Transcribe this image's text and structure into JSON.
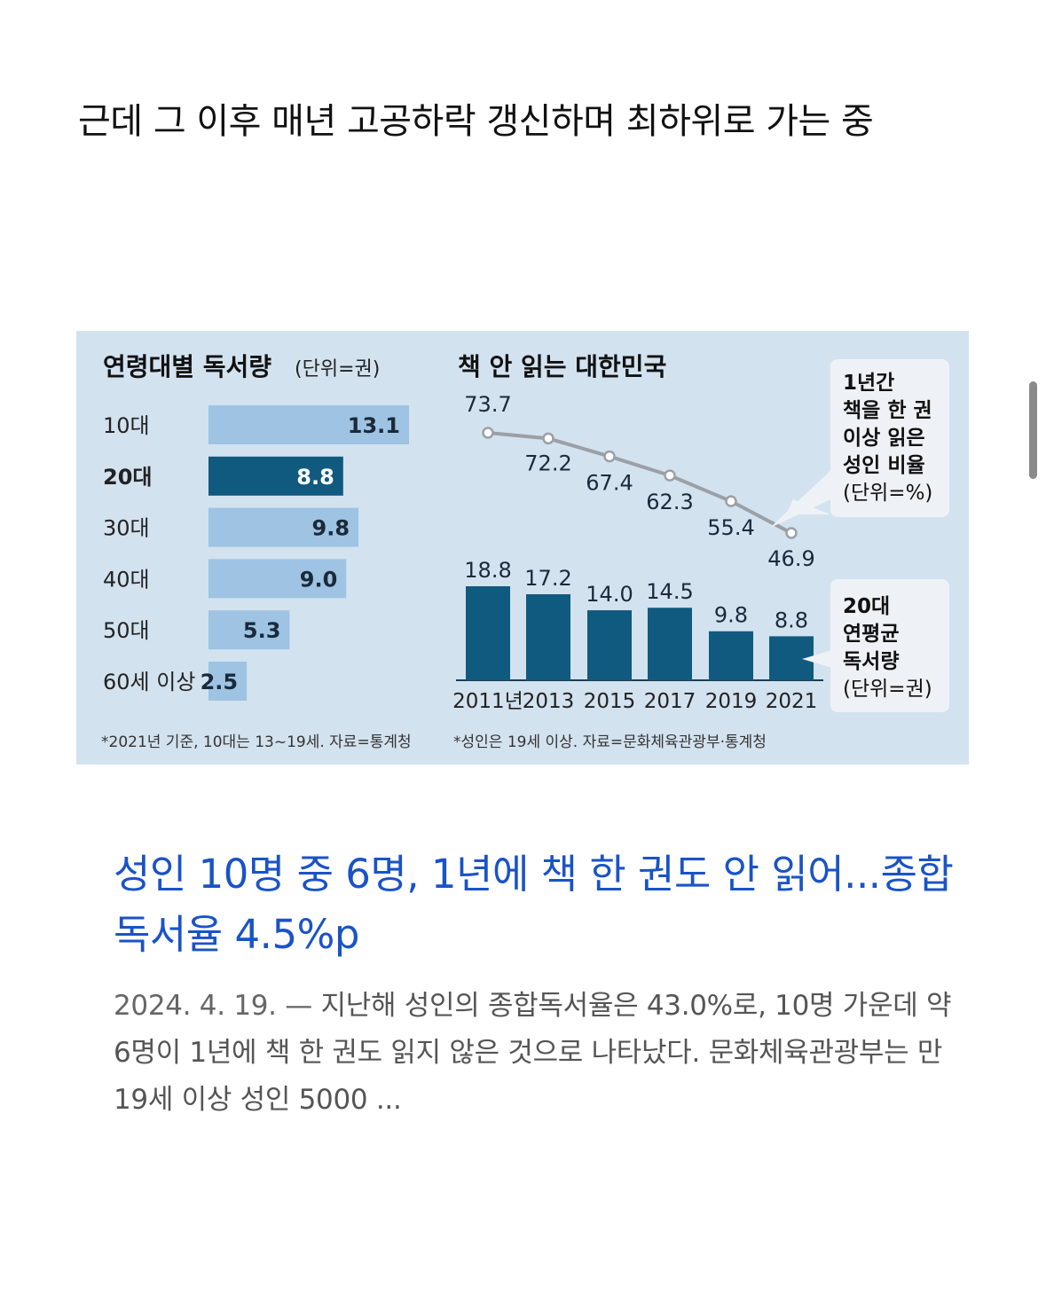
{
  "post": {
    "title": "근데 그 이후 매년 고공하락 갱신하며 최하위로 가는 중"
  },
  "article": {
    "headline": "성인 10명 중 6명, 1년에 책 한 권도 안 읽어...종합독서율 4.5%p",
    "date": "2024. 4. 19. —",
    "snippet": "지난해 성인의 종합독서율은 43.0%로, 10명 가운데 약 6명이 1년에 책 한 권도 읽지 않은 것으로 나타났다. 문화체육관광부는 만 19세 이상 성인 5000 ..."
  },
  "colors": {
    "panel_bg": "#d3e2ef",
    "light_bar": "#9ec3e3",
    "dark_bar": "#115a7f",
    "line": "#9aa0a6",
    "link": "#1a53c7"
  },
  "chart_data": [
    {
      "type": "bar",
      "orientation": "horizontal",
      "title": "연령대별 독서량",
      "unit_label": "(단위=권)",
      "categories": [
        "10대",
        "20대",
        "30대",
        "40대",
        "50대",
        "60세 이상"
      ],
      "values": [
        13.1,
        8.8,
        9.8,
        9.0,
        5.3,
        2.5
      ],
      "value_labels": [
        "13.1",
        "8.8",
        "9.8",
        "9.0",
        "5.3",
        "2.5"
      ],
      "highlight": "20대",
      "footnote": "*2021년 기준, 10대는 13~19세. 자료=통계청"
    },
    {
      "type": "line+bar",
      "title": "책 안 읽는 대한민국",
      "categories": [
        "2011년",
        "2013",
        "2015",
        "2017",
        "2019",
        "2021"
      ],
      "series": [
        {
          "name": "1년간 책을 한 권 이상 읽은 성인 비율",
          "type": "line",
          "values": [
            73.7,
            72.2,
            67.4,
            62.3,
            55.4,
            46.9
          ],
          "value_labels": [
            "73.7",
            "72.2",
            "67.4",
            "62.3",
            "55.4",
            "46.9"
          ],
          "legend_lines": [
            "1년간",
            "책을 한 권",
            "이상 읽은",
            "성인 비율",
            "(단위=%)"
          ]
        },
        {
          "name": "20대 연평균 독서량",
          "type": "bar",
          "values": [
            18.8,
            17.2,
            14.0,
            14.5,
            9.8,
            8.8
          ],
          "value_labels": [
            "18.8",
            "17.2",
            "14.0",
            "14.5",
            "9.8",
            "8.8"
          ],
          "legend_lines": [
            "20대",
            "연평균",
            "독서량",
            "(단위=권)"
          ]
        }
      ],
      "footnote": "*성인은 19세 이상. 자료=문화체육관광부·통계청"
    }
  ]
}
